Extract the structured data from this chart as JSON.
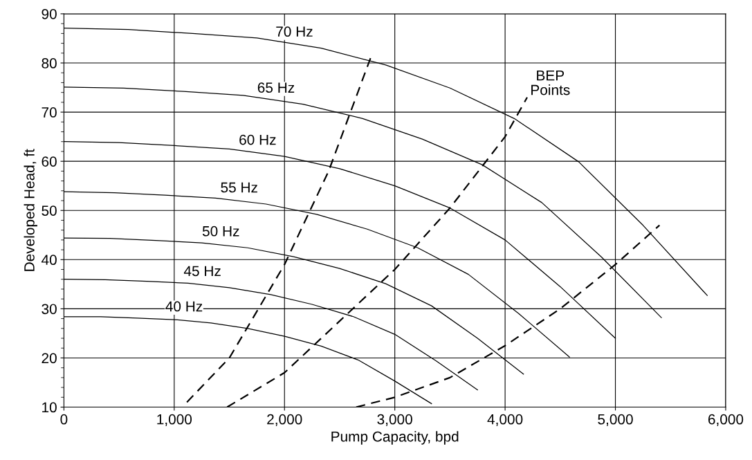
{
  "chart_data": {
    "type": "line",
    "xlabel": "Pump Capacity, bpd",
    "ylabel": "Developed Head, ft",
    "xlim": [
      0,
      6000
    ],
    "ylim": [
      10,
      90
    ],
    "xticks": [
      0,
      {
        "value": 1000,
        "label": "1,000"
      },
      {
        "value": 2000,
        "label": "2,000"
      },
      {
        "value": 3000,
        "label": "3,000"
      },
      {
        "value": 4000,
        "label": "4,000"
      },
      {
        "value": 5000,
        "label": "5,000"
      },
      {
        "value": 6000,
        "label": "6,000"
      }
    ],
    "yticks": [
      10,
      20,
      30,
      40,
      50,
      60,
      70,
      80,
      90
    ],
    "grid": true,
    "legend": false,
    "marker": "none",
    "series": [
      {
        "name": "70 Hz",
        "color": "#000000",
        "line_style": "solid",
        "x": [
          0,
          583,
          1167,
          1750,
          2333,
          2917,
          3500,
          4083,
          4667,
          5250,
          5833
        ],
        "values": [
          87.1,
          86.8,
          86.0,
          85.1,
          83.0,
          79.6,
          74.9,
          68.7,
          59.9,
          47.0,
          32.7
        ]
      },
      {
        "name": "65 Hz",
        "color": "#000000",
        "line_style": "solid",
        "x": [
          0,
          542,
          1083,
          1625,
          2167,
          2708,
          3250,
          3792,
          4333,
          4875,
          5417
        ],
        "values": [
          75.1,
          74.9,
          74.2,
          73.4,
          71.6,
          68.7,
          64.5,
          59.3,
          51.6,
          40.5,
          28.2
        ]
      },
      {
        "name": "60 Hz",
        "color": "#000000",
        "line_style": "solid",
        "x": [
          0,
          500,
          1000,
          1500,
          2000,
          2500,
          3000,
          3500,
          4000,
          4500,
          5000
        ],
        "values": [
          64.0,
          63.8,
          63.2,
          62.5,
          61.0,
          58.5,
          55.0,
          50.5,
          44.0,
          34.5,
          24.0
        ]
      },
      {
        "name": "55 Hz",
        "color": "#000000",
        "line_style": "solid",
        "x": [
          0,
          458,
          917,
          1375,
          1833,
          2292,
          2750,
          3208,
          3667,
          4125,
          4583
        ],
        "values": [
          53.8,
          53.6,
          53.1,
          52.5,
          51.3,
          49.2,
          46.2,
          42.4,
          37.0,
          29.0,
          20.2
        ]
      },
      {
        "name": "50 Hz",
        "color": "#000000",
        "line_style": "solid",
        "x": [
          0,
          417,
          833,
          1250,
          1667,
          2083,
          2500,
          2917,
          3333,
          3750,
          4167
        ],
        "values": [
          44.4,
          44.3,
          43.9,
          43.4,
          42.4,
          40.6,
          38.2,
          35.1,
          30.6,
          24.0,
          16.7
        ]
      },
      {
        "name": "45 Hz",
        "color": "#000000",
        "line_style": "solid",
        "x": [
          0,
          375,
          750,
          1125,
          1500,
          1875,
          2250,
          2625,
          3000,
          3375,
          3750
        ],
        "values": [
          36.0,
          35.9,
          35.6,
          35.2,
          34.3,
          32.9,
          30.9,
          28.4,
          24.8,
          19.4,
          13.5
        ]
      },
      {
        "name": "40 Hz",
        "color": "#000000",
        "line_style": "solid",
        "x": [
          0,
          333,
          667,
          1000,
          1333,
          1667,
          2000,
          2333,
          2667,
          3000,
          3333
        ],
        "values": [
          28.4,
          28.4,
          28.1,
          27.8,
          27.1,
          26.0,
          24.4,
          22.4,
          19.6,
          15.3,
          10.7
        ]
      },
      {
        "color": "#000000",
        "line_style": "dashed",
        "x": [
          1115,
          1500,
          2000,
          2400,
          2780
        ],
        "values": [
          11,
          20,
          39,
          58,
          81
        ]
      },
      {
        "name": "BEP\nPoints",
        "color": "#000000",
        "line_style": "dashed",
        "x": [
          1480,
          2000,
          2500,
          3000,
          3500,
          4000,
          4200
        ],
        "values": [
          10,
          17,
          27.5,
          38,
          50.5,
          65,
          73
        ]
      },
      {
        "color": "#000000",
        "line_style": "dashed",
        "x": [
          2650,
          3000,
          3500,
          4000,
          4500,
          5000,
          5400
        ],
        "values": [
          10,
          12,
          16,
          22.5,
          30,
          39,
          47
        ]
      }
    ]
  }
}
